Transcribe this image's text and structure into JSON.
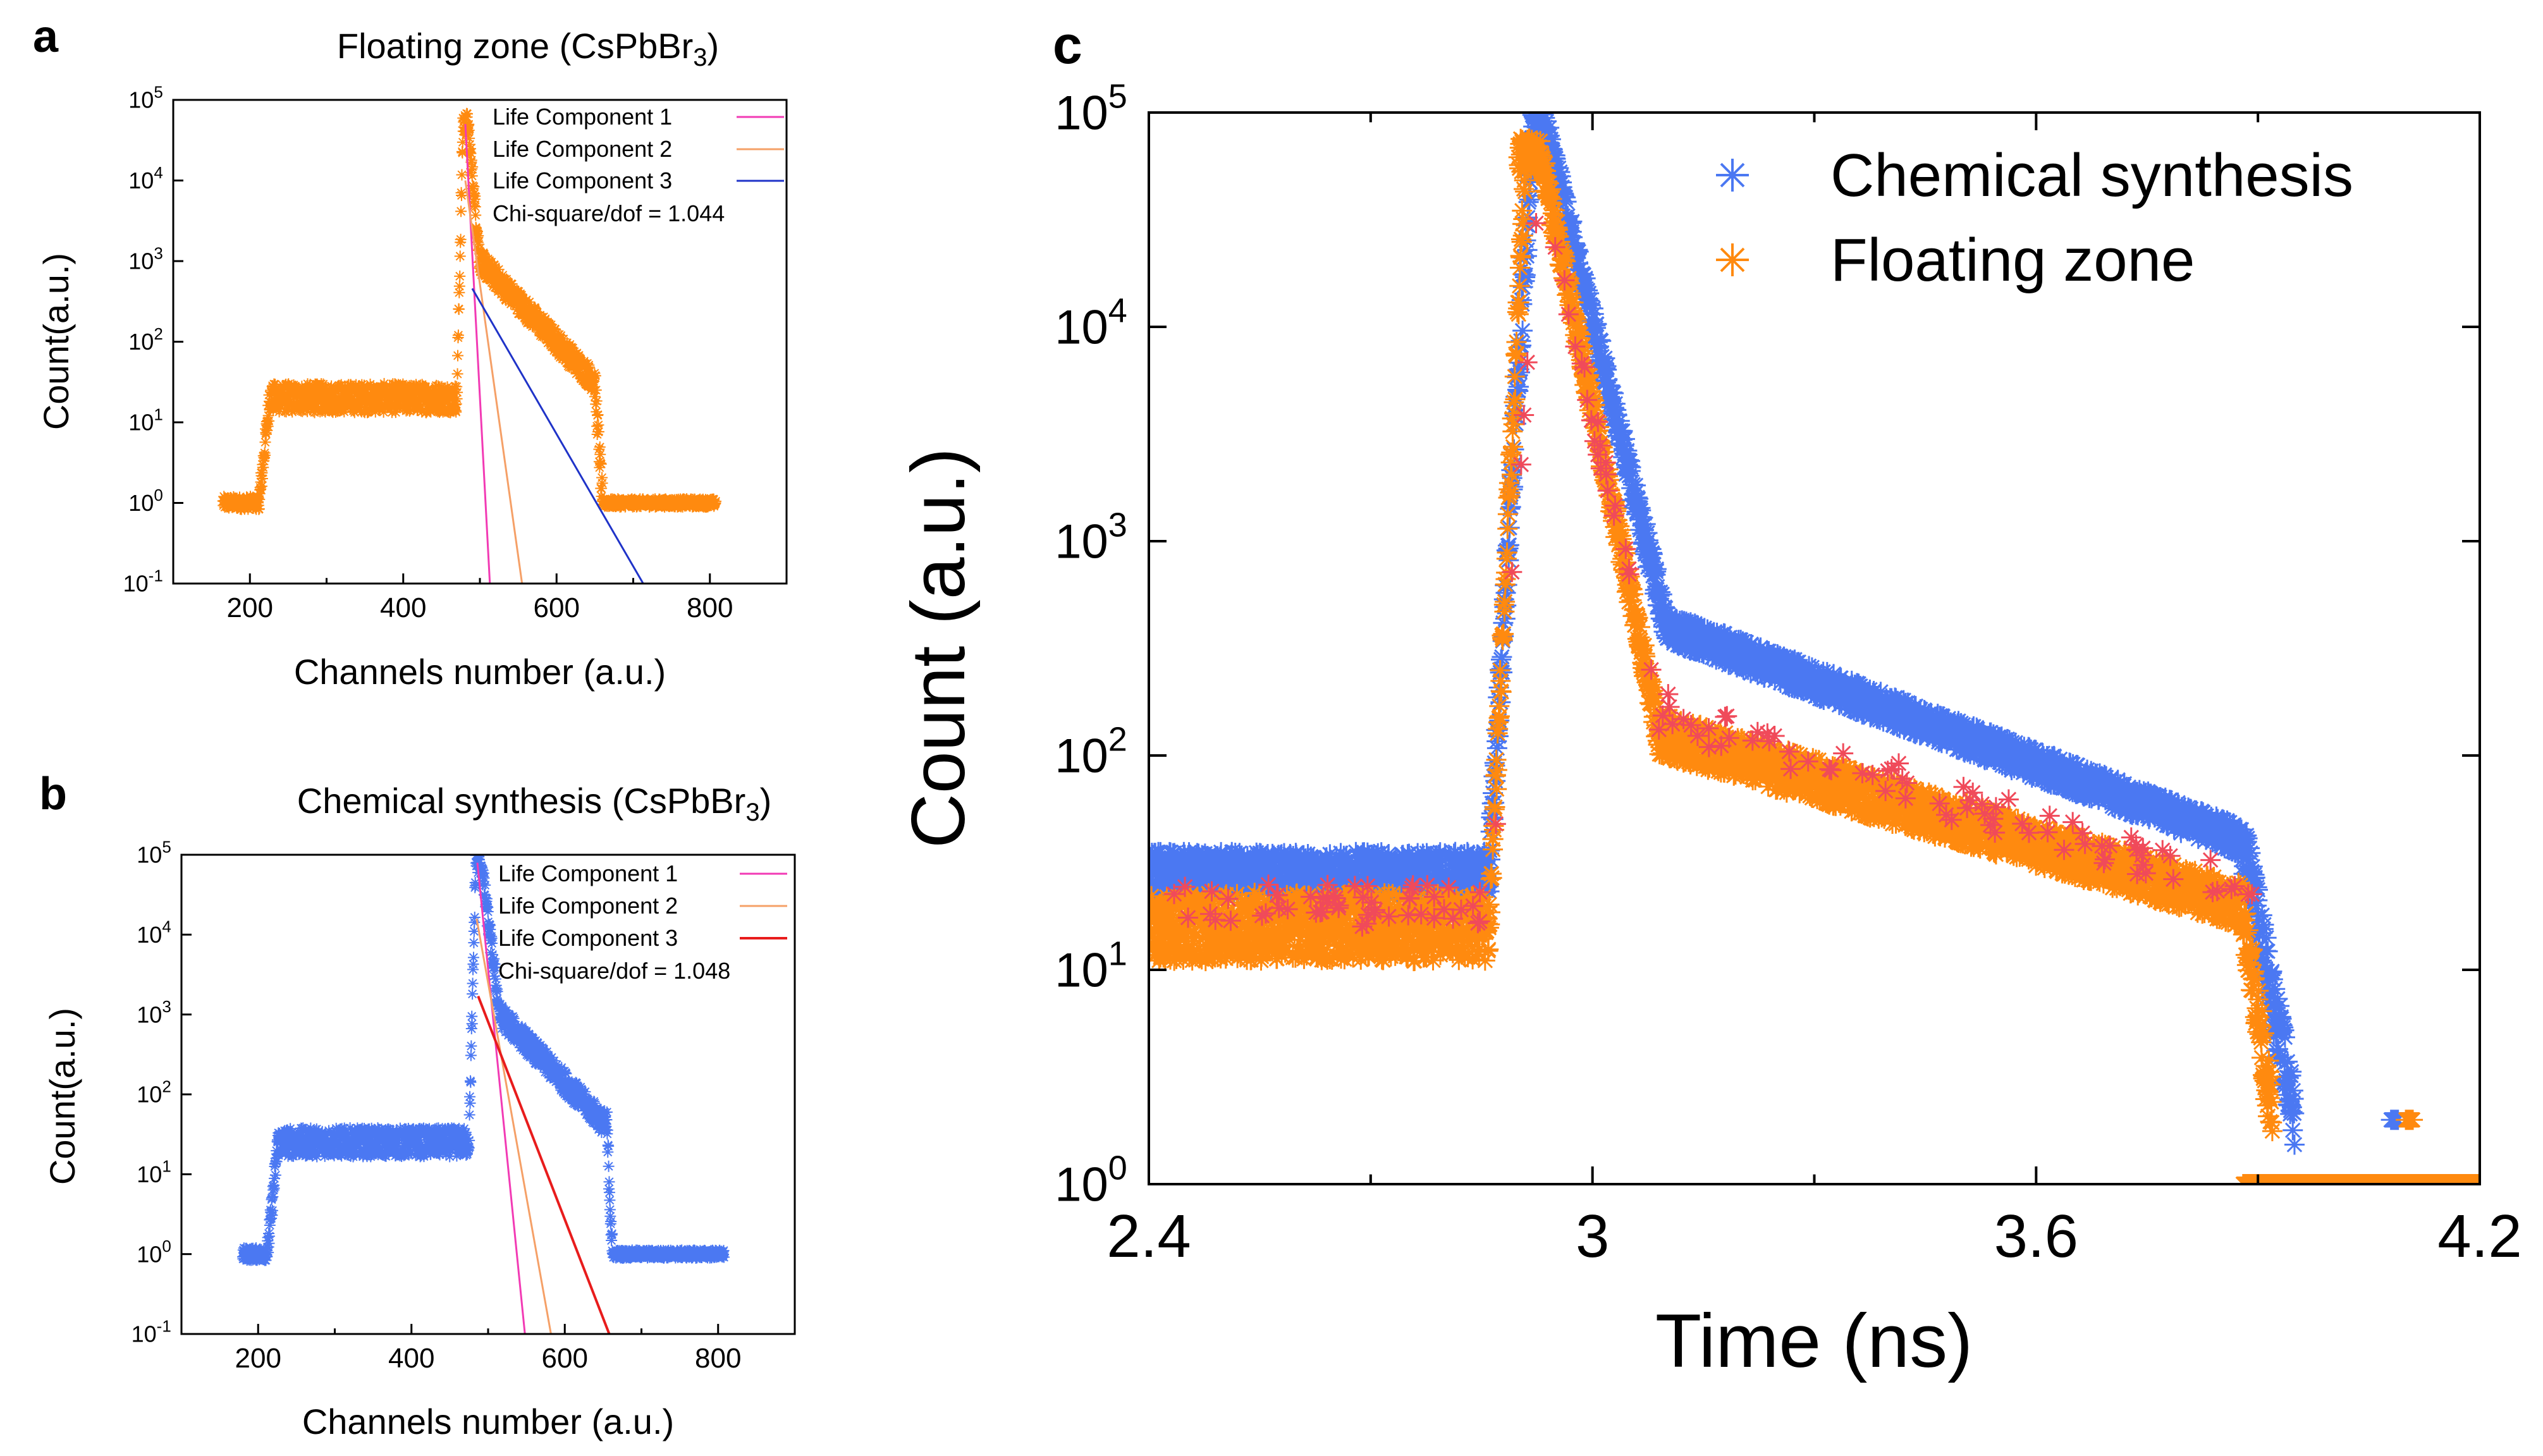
{
  "colors": {
    "orange": "#ff8a0f",
    "blue": "#4b78f2",
    "red_scatter": "#f04a5a",
    "comp1": "#f23ab4",
    "comp2": "#f5a067",
    "comp3_a": "#1f33c8",
    "comp3_b": "#e81c1c"
  },
  "chart_data": [
    {
      "panel": "a",
      "type": "scatter",
      "title_main": "Floating zone (CsPbBr",
      "title_sub": "3",
      "title_end": ")",
      "xlabel": "Channels number (a.u.)",
      "ylabel": "Count(a.u.)",
      "xlim": [
        100,
        900
      ],
      "ylim_log10": [
        -1,
        5
      ],
      "xticks": [
        200,
        400,
        600,
        800
      ],
      "yticks_exp": [
        "-1",
        "0",
        "1",
        "2",
        "3",
        "4",
        "5"
      ],
      "ytick_base": "10",
      "series": [
        {
          "name": "data",
          "color_key": "orange",
          "segments": [
            {
              "x0": 165,
              "x1": 212,
              "log_y": 0.0,
              "spread": 0.08
            },
            {
              "x0": 212,
              "x1": 225,
              "log_y_from": 0.0,
              "log_y_to": 1.2,
              "spread": 0.15
            },
            {
              "x0": 225,
              "x1": 470,
              "log_y": 1.3,
              "spread": 0.18
            },
            {
              "x0": 470,
              "x1": 478,
              "log_y_from": 1.3,
              "log_y_to": 4.7,
              "spread": 0.15
            },
            {
              "x0": 478,
              "x1": 485,
              "log_y": 4.7,
              "spread": 0.15
            },
            {
              "x0": 485,
              "x1": 500,
              "log_y_from": 4.6,
              "log_y_to": 3.0,
              "spread": 0.15
            },
            {
              "x0": 500,
              "x1": 650,
              "log_y_from": 3.0,
              "log_y_to": 1.5,
              "spread": 0.15
            },
            {
              "x0": 650,
              "x1": 660,
              "log_y_from": 1.5,
              "log_y_to": 0.0,
              "spread": 0.2
            },
            {
              "x0": 660,
              "x1": 808,
              "log_y": 0.0,
              "spread": 0.05
            }
          ]
        }
      ],
      "fit_lines": [
        {
          "name": "Life Component 1",
          "color_key": "comp1",
          "x": [
            481,
            513
          ],
          "log_y": [
            4.7,
            -1
          ]
        },
        {
          "name": "Life Component 2",
          "color_key": "comp2",
          "x": [
            481,
            555
          ],
          "log_y": [
            4.0,
            -1
          ]
        },
        {
          "name": "Life Component 3",
          "color_key": "comp3_a",
          "x": [
            490,
            713
          ],
          "log_y": [
            2.66,
            -1
          ]
        }
      ],
      "legend": [
        "Life Component 1",
        "Life Component 2",
        "Life Component 3"
      ],
      "chi_square": "Chi-square/dof = 1.044"
    },
    {
      "panel": "b",
      "type": "scatter",
      "title_main": "Chemical synthesis (CsPbBr",
      "title_sub": "3",
      "title_end": ")",
      "xlabel": "Channels number (a.u.)",
      "ylabel": "Count(a.u.)",
      "xlim": [
        100,
        900
      ],
      "ylim_log10": [
        -1,
        5
      ],
      "xticks": [
        200,
        400,
        600,
        800
      ],
      "yticks_exp": [
        "-1",
        "0",
        "1",
        "2",
        "3",
        "4",
        "5"
      ],
      "ytick_base": "10",
      "series": [
        {
          "name": "data",
          "color_key": "blue",
          "segments": [
            {
              "x0": 180,
              "x1": 212,
              "log_y": 0.0,
              "spread": 0.08
            },
            {
              "x0": 212,
              "x1": 225,
              "log_y_from": 0.0,
              "log_y_to": 1.3,
              "spread": 0.15
            },
            {
              "x0": 225,
              "x1": 475,
              "log_y": 1.4,
              "spread": 0.18
            },
            {
              "x0": 475,
              "x1": 484,
              "log_y_from": 1.4,
              "log_y_to": 4.9,
              "spread": 0.15
            },
            {
              "x0": 484,
              "x1": 492,
              "log_y": 4.9,
              "spread": 0.15
            },
            {
              "x0": 492,
              "x1": 515,
              "log_y_from": 4.8,
              "log_y_to": 3.0,
              "spread": 0.15
            },
            {
              "x0": 515,
              "x1": 655,
              "log_y_from": 3.0,
              "log_y_to": 1.6,
              "spread": 0.15
            },
            {
              "x0": 655,
              "x1": 662,
              "log_y_from": 1.6,
              "log_y_to": 0.0,
              "spread": 0.2
            },
            {
              "x0": 662,
              "x1": 808,
              "log_y": 0.0,
              "spread": 0.05
            }
          ]
        }
      ],
      "fit_lines": [
        {
          "name": "Life Component 1",
          "color_key": "comp1",
          "x": [
            486,
            548
          ],
          "log_y": [
            4.9,
            -1
          ]
        },
        {
          "name": "Life Component 2",
          "color_key": "comp2",
          "x": [
            485,
            582
          ],
          "log_y": [
            4.2,
            -1
          ]
        },
        {
          "name": "Life Component 3",
          "color_key": "comp3_b",
          "x": [
            487,
            658
          ],
          "log_y": [
            3.23,
            -1
          ]
        }
      ],
      "legend": [
        "Life Component 1",
        "Life Component 2",
        "Life Component 3"
      ],
      "chi_square": "Chi-square/dof = 1.048"
    },
    {
      "panel": "c",
      "type": "scatter",
      "title_main": "",
      "xlabel": "Time (ns)",
      "ylabel": "Count (a.u.)",
      "xlim": [
        2.4,
        4.2
      ],
      "ylim_log10": [
        0,
        5
      ],
      "xticks": [
        2.4,
        3,
        3.6,
        4.2
      ],
      "xtick_labels": [
        "2.4",
        "3",
        "3.6",
        "4.2"
      ],
      "yticks_exp": [
        "0",
        "1",
        "2",
        "3",
        "4",
        "5"
      ],
      "ytick_base": "10",
      "series": [
        {
          "name": "Chemical synthesis",
          "color_key": "blue",
          "segments": [
            {
              "x0": 2.4,
              "x1": 2.86,
              "log_y": 1.45,
              "spread": 0.1
            },
            {
              "x0": 2.86,
              "x1": 2.92,
              "log_y_from": 1.45,
              "log_y_to": 4.95,
              "spread": 0.12
            },
            {
              "x0": 2.92,
              "x1": 2.935,
              "log_y": 4.95,
              "spread": 0.07
            },
            {
              "x0": 2.935,
              "x1": 3.1,
              "log_y_from": 4.95,
              "log_y_to": 2.6,
              "spread": 0.08
            },
            {
              "x0": 3.1,
              "x1": 3.88,
              "log_y_from": 2.6,
              "log_y_to": 1.6,
              "spread": 0.07
            },
            {
              "x0": 3.88,
              "x1": 3.95,
              "log_y_from": 1.6,
              "log_y_to": 0.3,
              "spread": 0.15
            },
            {
              "x0": 3.89,
              "x1": 4.2,
              "log_y": 0.0,
              "spread": 0.0
            },
            {
              "x0": 4.08,
              "x1": 4.09,
              "log_y": 0.3,
              "spread": 0.0
            }
          ]
        },
        {
          "name": "Floating zone",
          "color_key": "orange",
          "segments": [
            {
              "x0": 2.4,
              "x1": 2.86,
              "log_y": 1.2,
              "spread": 0.16
            },
            {
              "x0": 2.86,
              "x1": 2.91,
              "log_y_from": 1.2,
              "log_y_to": 4.8,
              "spread": 0.12
            },
            {
              "x0": 2.9,
              "x1": 2.93,
              "log_y": 4.8,
              "spread": 0.08
            },
            {
              "x0": 2.93,
              "x1": 3.09,
              "log_y_from": 4.8,
              "log_y_to": 2.1,
              "spread": 0.08
            },
            {
              "x0": 3.09,
              "x1": 3.88,
              "log_y_from": 2.1,
              "log_y_to": 1.3,
              "spread": 0.1
            },
            {
              "x0": 3.88,
              "x1": 3.92,
              "log_y_from": 1.3,
              "log_y_to": 0.3,
              "spread": 0.15
            },
            {
              "x0": 3.88,
              "x1": 4.2,
              "log_y": 0.0,
              "spread": 0.0
            },
            {
              "x0": 4.1,
              "x1": 4.11,
              "log_y": 0.3,
              "spread": 0.0
            }
          ]
        }
      ],
      "legend": [
        "Chemical synthesis",
        "Floating zone"
      ]
    }
  ]
}
